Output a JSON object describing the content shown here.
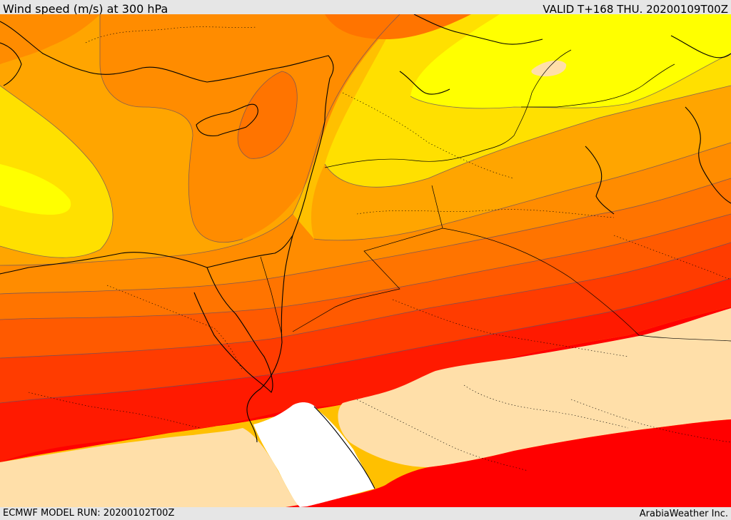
{
  "header": {
    "title": "Wind speed (m/s) at 300 hPa",
    "valid": "VALID T+168 THU. 20200109T00Z"
  },
  "footer": {
    "model_run": "ECMWF MODEL RUN: 20200102T00Z",
    "credit": "ArabiaWeather Inc."
  },
  "map": {
    "region": "Eastern Mediterranean and Arabian Peninsula",
    "field": "wind speed",
    "level_hpa": 300,
    "colors": {
      "band_1": "#ffff00",
      "band_2": "#ffe000",
      "band_3": "#ffc000",
      "band_4": "#ffa500",
      "band_5": "#ff8c00",
      "band_6": "#ff7400",
      "band_7": "#ff5a00",
      "band_8": "#ff3c00",
      "band_9": "#ff1a00",
      "band_10": "#ff0000",
      "band_11": "#ffdfa9",
      "no_data": "#ffffff"
    }
  }
}
